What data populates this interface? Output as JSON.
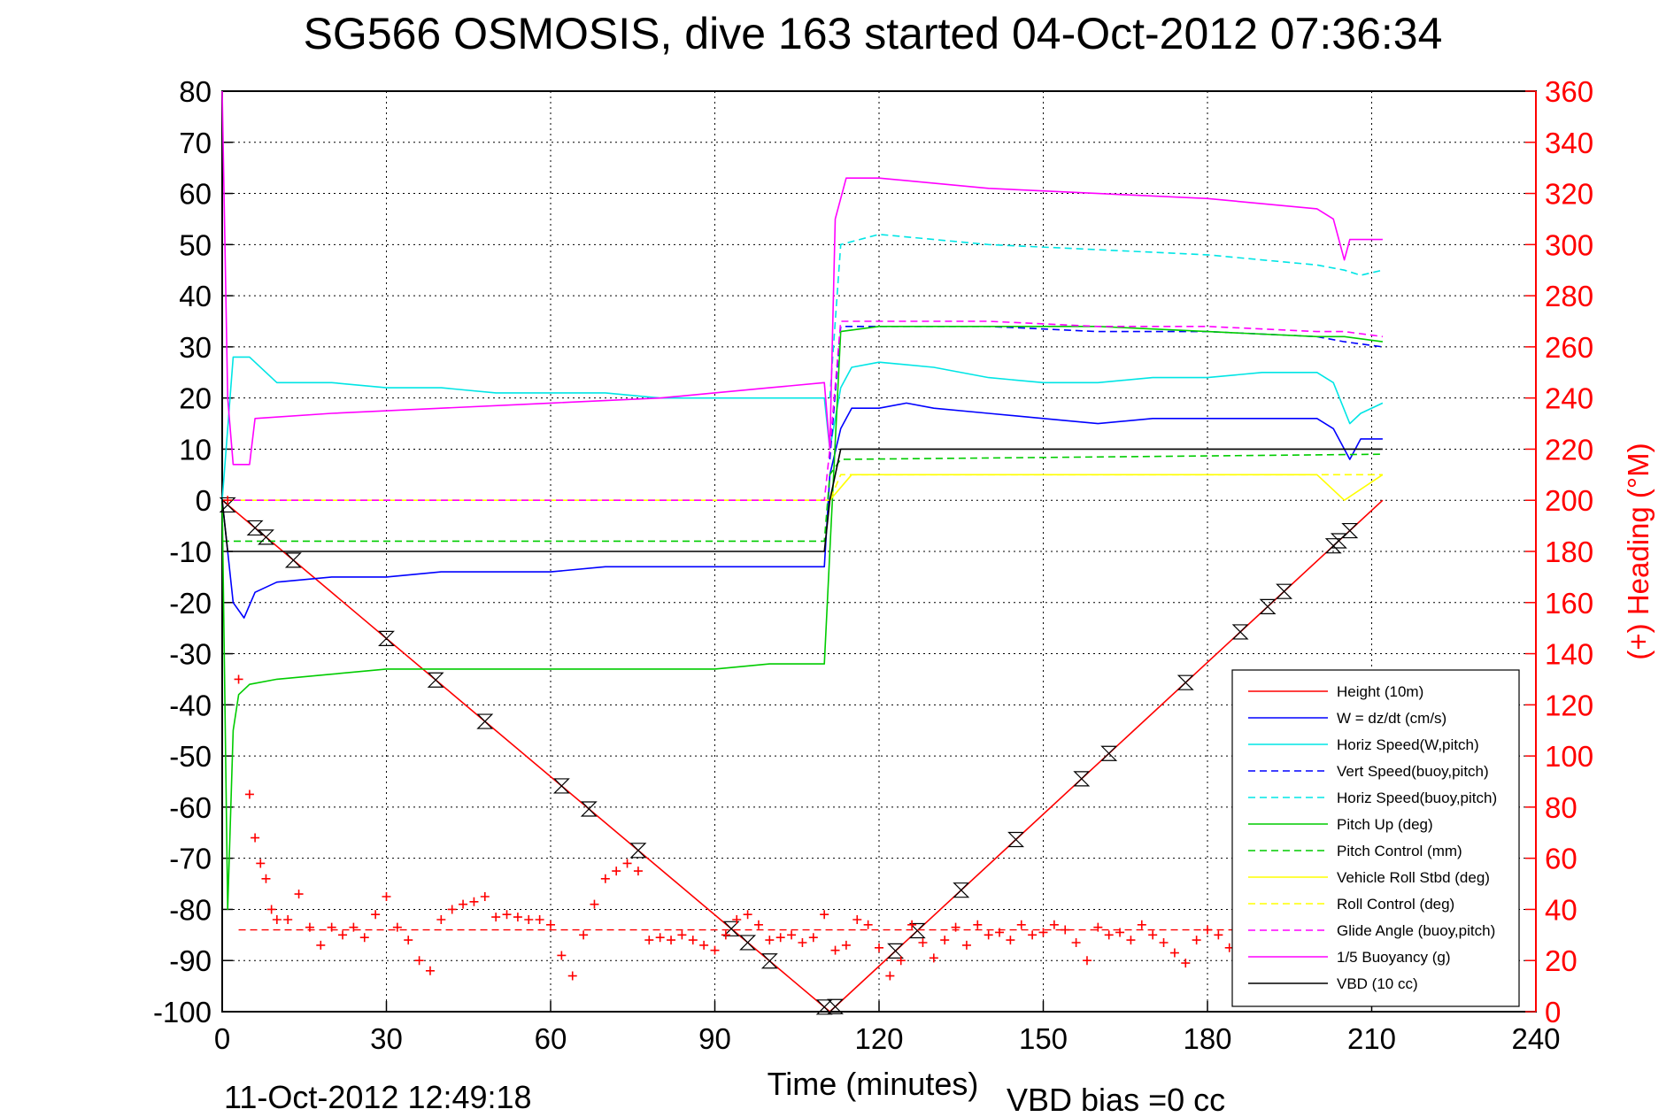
{
  "chart_data": {
    "type": "line",
    "title": "SG566 OSMOSIS, dive 163 started 04-Oct-2012 07:36:34",
    "xlabel": "Time (minutes)",
    "ylabel": "",
    "y2label": "(+) Heading (°M)",
    "xlim": [
      0,
      240
    ],
    "ylim": [
      -100,
      80
    ],
    "y2lim": [
      0,
      360
    ],
    "x_ticks": [
      0,
      30,
      60,
      90,
      120,
      150,
      180,
      210,
      240
    ],
    "y_ticks": [
      80,
      70,
      60,
      50,
      40,
      30,
      20,
      10,
      0,
      -10,
      -20,
      -30,
      -40,
      -50,
      -60,
      -70,
      -80,
      -90,
      -100
    ],
    "y2_ticks": [
      360,
      340,
      320,
      300,
      280,
      260,
      240,
      220,
      200,
      180,
      160,
      140,
      120,
      100,
      80,
      60,
      40,
      20,
      0
    ],
    "grid": true,
    "legend_position": "bottom-right",
    "footer_date": "11-Oct-2012 12:49:18",
    "footer_bias": "VBD bias =0 cc",
    "series": [
      {
        "name": "Height (10m)",
        "color": "#ff0000",
        "style": "solid",
        "x": [
          0,
          111,
          212
        ],
        "y": [
          0,
          -100,
          0
        ]
      },
      {
        "name": "W = dz/dt (cm/s)",
        "color": "#0000ff",
        "style": "solid",
        "x": [
          0,
          2,
          4,
          6,
          10,
          20,
          30,
          40,
          50,
          60,
          70,
          80,
          90,
          100,
          110,
          111,
          113,
          115,
          120,
          125,
          130,
          140,
          150,
          160,
          170,
          180,
          190,
          200,
          203,
          206,
          208,
          212
        ],
        "y": [
          0,
          -20,
          -23,
          -18,
          -16,
          -15,
          -15,
          -14,
          -14,
          -14,
          -13,
          -13,
          -13,
          -13,
          -13,
          5,
          14,
          18,
          18,
          19,
          18,
          17,
          16,
          15,
          16,
          16,
          16,
          16,
          14,
          8,
          12,
          12
        ]
      },
      {
        "name": "Horiz Speed(W,pitch)",
        "color": "#00e5e5",
        "style": "solid",
        "x": [
          0,
          2,
          5,
          10,
          20,
          30,
          40,
          50,
          60,
          70,
          80,
          90,
          100,
          110,
          111,
          113,
          115,
          120,
          130,
          140,
          150,
          160,
          170,
          180,
          190,
          200,
          203,
          206,
          208,
          212
        ],
        "y": [
          0,
          28,
          28,
          23,
          23,
          22,
          22,
          21,
          21,
          21,
          20,
          20,
          20,
          20,
          10,
          22,
          26,
          27,
          26,
          24,
          23,
          23,
          24,
          24,
          25,
          25,
          23,
          15,
          17,
          19
        ]
      },
      {
        "name": "Vert Speed(buoy,pitch)",
        "color": "#0000ff",
        "style": "dashed",
        "x": [
          111,
          113,
          120,
          140,
          160,
          180,
          200,
          205,
          212
        ],
        "y": [
          8,
          34,
          34,
          34,
          33,
          33,
          32,
          31,
          30
        ]
      },
      {
        "name": "Horiz Speed(buoy,pitch)",
        "color": "#00e5e5",
        "style": "dashed",
        "x": [
          111,
          113,
          120,
          140,
          160,
          180,
          200,
          205,
          208,
          212
        ],
        "y": [
          20,
          50,
          52,
          50,
          49,
          48,
          46,
          45,
          44,
          45
        ]
      },
      {
        "name": "Pitch Up (deg)",
        "color": "#00cc00",
        "style": "solid",
        "x": [
          0,
          1,
          2,
          3,
          5,
          10,
          20,
          30,
          40,
          50,
          60,
          70,
          80,
          90,
          100,
          110,
          111,
          113,
          120,
          140,
          160,
          180,
          200,
          205,
          212
        ],
        "y": [
          0,
          -80,
          -45,
          -38,
          -36,
          -35,
          -34,
          -33,
          -33,
          -33,
          -33,
          -33,
          -33,
          -33,
          -32,
          -32,
          -10,
          33,
          34,
          34,
          34,
          33,
          32,
          32,
          31
        ]
      },
      {
        "name": "Pitch Control (mm)",
        "color": "#00cc00",
        "style": "dashed",
        "x": [
          0,
          5,
          110,
          111,
          113,
          212
        ],
        "y": [
          -8,
          -8,
          -8,
          5,
          8,
          9
        ]
      },
      {
        "name": "Vehicle Roll Stbd (deg)",
        "color": "#ffff00",
        "style": "solid",
        "x": [
          0,
          10,
          30,
          50,
          70,
          90,
          110,
          111,
          115,
          140,
          170,
          200,
          205,
          212
        ],
        "y": [
          0,
          0,
          0,
          0,
          0,
          0,
          0,
          0,
          5,
          5,
          5,
          5,
          0,
          5
        ]
      },
      {
        "name": "Roll Control (deg)",
        "color": "#ffff00",
        "style": "dashed",
        "x": [
          0,
          10,
          110,
          111,
          113,
          212
        ],
        "y": [
          0,
          0,
          0,
          0,
          5,
          5
        ]
      },
      {
        "name": "Glide Angle (buoy,pitch)",
        "color": "#ff00ff",
        "style": "dashed",
        "x": [
          0,
          110,
          111,
          113,
          120,
          140,
          160,
          180,
          200,
          205,
          212
        ],
        "y": [
          0,
          0,
          10,
          35,
          35,
          35,
          34,
          34,
          33,
          33,
          32
        ]
      },
      {
        "name": "1/5 Buoyancy (g)",
        "color": "#ff00ff",
        "style": "solid",
        "x": [
          0,
          1,
          2,
          5,
          6,
          20,
          40,
          60,
          80,
          100,
          110,
          111,
          112,
          114,
          120,
          140,
          160,
          180,
          200,
          203,
          205,
          206,
          208,
          212
        ],
        "y": [
          80,
          20,
          7,
          7,
          16,
          17,
          18,
          19,
          20,
          22,
          23,
          10,
          55,
          63,
          63,
          61,
          60,
          59,
          57,
          55,
          47,
          51,
          51,
          51
        ]
      },
      {
        "name": "VBD (10 cc)",
        "color": "#000000",
        "style": "solid",
        "x": [
          0,
          1,
          2,
          110,
          111,
          113,
          212
        ],
        "y": [
          0,
          -10,
          -10,
          -10,
          0,
          10,
          10
        ]
      }
    ],
    "heading": {
      "name": "(+) Heading",
      "color": "#ff0000",
      "axis": "right",
      "mean": 32,
      "x": [
        1,
        3,
        5,
        6,
        7,
        8,
        9,
        10,
        12,
        14,
        16,
        18,
        20,
        22,
        24,
        26,
        28,
        30,
        32,
        34,
        36,
        38,
        40,
        42,
        44,
        46,
        48,
        50,
        52,
        54,
        56,
        58,
        60,
        62,
        64,
        66,
        68,
        70,
        72,
        74,
        76,
        78,
        80,
        82,
        84,
        86,
        88,
        90,
        92,
        94,
        96,
        98,
        100,
        102,
        104,
        106,
        108,
        110,
        112,
        114,
        116,
        118,
        120,
        122,
        124,
        126,
        128,
        130,
        132,
        134,
        136,
        138,
        140,
        142,
        144,
        146,
        148,
        150,
        152,
        154,
        156,
        158,
        160,
        162,
        164,
        166,
        168,
        170,
        172,
        174,
        176,
        178,
        180,
        182,
        184,
        186
      ],
      "y": [
        200,
        130,
        85,
        68,
        58,
        52,
        40,
        36,
        36,
        46,
        33,
        26,
        33,
        30,
        33,
        29,
        38,
        45,
        33,
        28,
        20,
        16,
        36,
        40,
        42,
        43,
        45,
        37,
        38,
        37,
        36,
        36,
        34,
        22,
        14,
        30,
        42,
        52,
        55,
        58,
        55,
        28,
        29,
        28,
        30,
        28,
        26,
        24,
        30,
        36,
        38,
        34,
        28,
        29,
        30,
        27,
        29,
        38,
        24,
        26,
        36,
        34,
        25,
        14,
        20,
        34,
        27,
        21,
        28,
        33,
        26,
        34,
        30,
        31,
        28,
        34,
        30,
        31,
        34,
        32,
        27,
        20,
        33,
        30,
        31,
        28,
        34,
        30,
        27,
        23,
        19,
        28,
        32,
        30,
        25,
        12
      ]
    }
  }
}
